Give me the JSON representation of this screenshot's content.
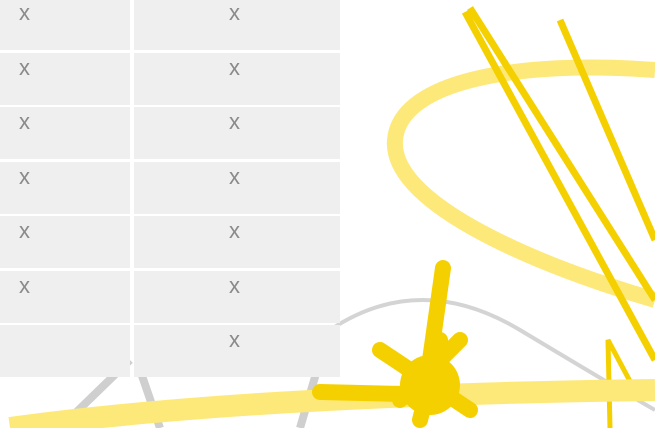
{
  "table": {
    "left": [
      "x",
      "x",
      "x",
      "x",
      "x",
      "x"
    ],
    "right": [
      "x",
      "x",
      "x",
      "x",
      "x",
      "x",
      "x"
    ]
  }
}
